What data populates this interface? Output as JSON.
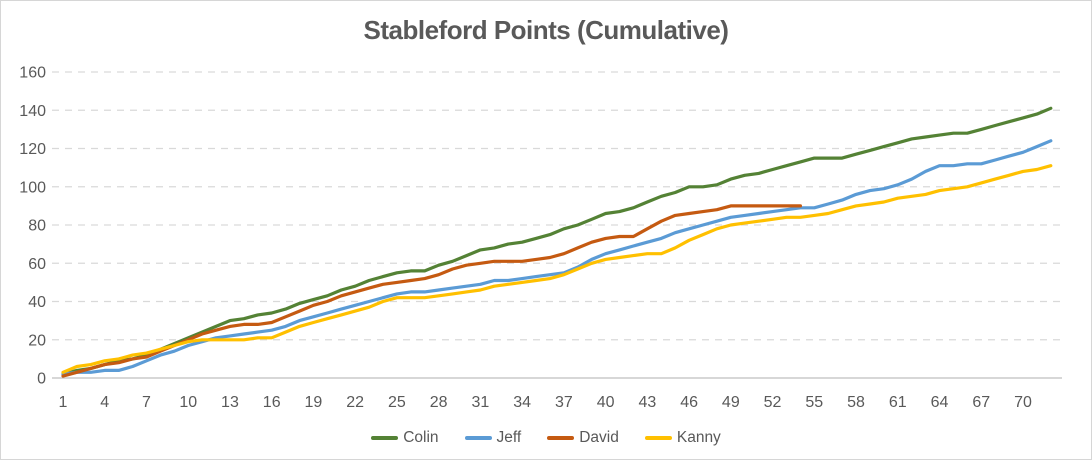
{
  "title": "Stableford Points (Cumulative)",
  "colors": {
    "title_text": "#595959",
    "axis_text": "#595959",
    "gridline": "#d9d9d9",
    "axis_line": "#bfbfbf",
    "background": "#ffffff",
    "frame_border": "#d6d6d6"
  },
  "chart_data": {
    "type": "line",
    "title": "Stableford Points (Cumulative)",
    "xlabel": "",
    "ylabel": "",
    "x_start": 1,
    "xlim": [
      1,
      72
    ],
    "ylim": [
      0,
      160
    ],
    "x_ticks": [
      1,
      4,
      7,
      10,
      13,
      16,
      19,
      22,
      25,
      28,
      31,
      34,
      37,
      40,
      43,
      46,
      49,
      52,
      55,
      58,
      61,
      64,
      67,
      70
    ],
    "y_ticks": [
      0,
      20,
      40,
      60,
      80,
      100,
      120,
      140,
      160
    ],
    "grid": "horizontal-dashed",
    "legend_position": "bottom",
    "series": [
      {
        "name": "Colin",
        "color": "#548235",
        "values": [
          2,
          4,
          5,
          7,
          9,
          10,
          12,
          15,
          18,
          21,
          24,
          27,
          30,
          31,
          33,
          34,
          36,
          39,
          41,
          43,
          46,
          48,
          51,
          53,
          55,
          56,
          56,
          59,
          61,
          64,
          67,
          68,
          70,
          71,
          73,
          75,
          78,
          80,
          83,
          86,
          87,
          89,
          92,
          95,
          97,
          100,
          100,
          101,
          104,
          106,
          107,
          109,
          111,
          113,
          115,
          115,
          115,
          117,
          119,
          121,
          123,
          125,
          126,
          127,
          128,
          128,
          130,
          132,
          134,
          136,
          138,
          141
        ]
      },
      {
        "name": "Jeff",
        "color": "#5b9bd5",
        "values": [
          2,
          3,
          3,
          4,
          4,
          6,
          9,
          12,
          14,
          17,
          19,
          21,
          22,
          23,
          24,
          25,
          27,
          30,
          32,
          34,
          36,
          38,
          40,
          42,
          44,
          45,
          45,
          46,
          47,
          48,
          49,
          51,
          51,
          52,
          53,
          54,
          55,
          58,
          62,
          65,
          67,
          69,
          71,
          73,
          76,
          78,
          80,
          82,
          84,
          85,
          86,
          87,
          88,
          89,
          89,
          91,
          93,
          96,
          98,
          99,
          101,
          104,
          108,
          111,
          111,
          112,
          112,
          114,
          116,
          118,
          121,
          124
        ]
      },
      {
        "name": "David",
        "color": "#c55a11",
        "values": [
          1,
          3,
          5,
          7,
          8,
          10,
          11,
          14,
          17,
          20,
          23,
          25,
          27,
          28,
          28,
          29,
          32,
          35,
          38,
          40,
          43,
          45,
          47,
          49,
          50,
          51,
          52,
          54,
          57,
          59,
          60,
          61,
          61,
          61,
          62,
          63,
          65,
          68,
          71,
          73,
          74,
          74,
          78,
          82,
          85,
          86,
          87,
          88,
          90,
          90,
          90,
          90,
          90,
          90
        ]
      },
      {
        "name": "Kanny",
        "color": "#ffc000",
        "values": [
          3,
          6,
          7,
          9,
          10,
          12,
          13,
          15,
          17,
          19,
          20,
          20,
          20,
          20,
          21,
          21,
          24,
          27,
          29,
          31,
          33,
          35,
          37,
          40,
          42,
          42,
          42,
          43,
          44,
          45,
          46,
          48,
          49,
          50,
          51,
          52,
          54,
          57,
          60,
          62,
          63,
          64,
          65,
          65,
          68,
          72,
          75,
          78,
          80,
          81,
          82,
          83,
          84,
          84,
          85,
          86,
          88,
          90,
          91,
          92,
          94,
          95,
          96,
          98,
          99,
          100,
          102,
          104,
          106,
          108,
          109,
          111
        ]
      }
    ]
  }
}
